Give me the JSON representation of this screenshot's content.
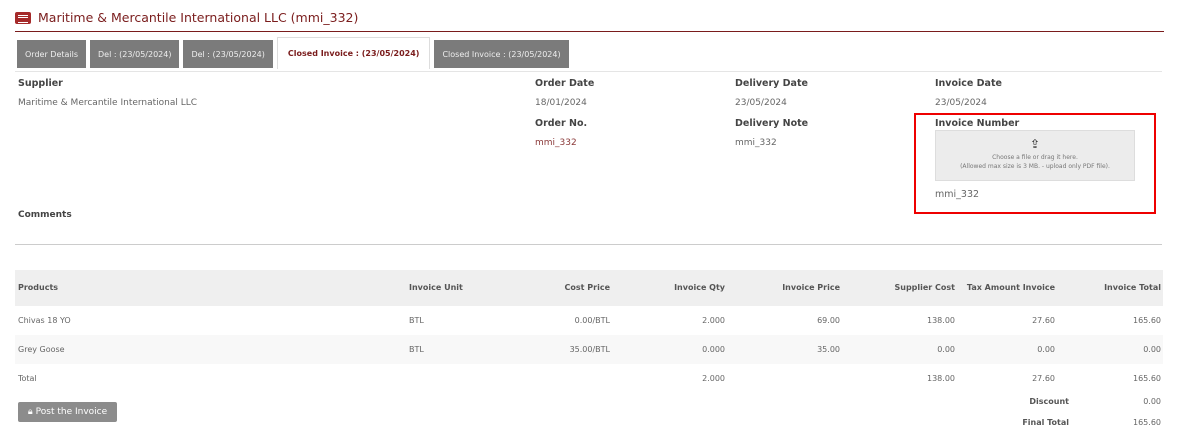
{
  "header": {
    "title": "Maritime & Mercantile International LLC (mmi_332)",
    "icon": "list-icon"
  },
  "tabs": [
    {
      "label": "Order Details"
    },
    {
      "label": "Del : (23/05/2024)"
    },
    {
      "label": "Del : (23/05/2024)"
    },
    {
      "label": "Closed Invoice : (23/05/2024)",
      "active": true
    },
    {
      "label": "Closed Invoice : (23/05/2024)"
    }
  ],
  "details": {
    "supplier_label": "Supplier",
    "supplier": "Maritime & Mercantile International LLC",
    "order_date_label": "Order Date",
    "order_date": "18/01/2024",
    "delivery_date_label": "Delivery Date",
    "delivery_date": "23/05/2024",
    "invoice_date_label": "Invoice Date",
    "invoice_date": "23/05/2024",
    "order_no_label": "Order No.",
    "order_no": "mmi_332",
    "delivery_note_label": "Delivery Note",
    "delivery_note": "mmi_332",
    "invoice_number_label": "Invoice Number",
    "invoice_number": "mmi_332",
    "upload_line1": "Choose a file or drag it here.",
    "upload_line2": "(Allowed max size is 3 MB. - upload only PDF file).",
    "comments_label": "Comments"
  },
  "table": {
    "headers": [
      "Products",
      "Invoice Unit",
      "Cost Price",
      "Invoice Qty",
      "Invoice Price",
      "Supplier Cost",
      "Tax Amount Invoice",
      "Invoice Total"
    ],
    "rows": [
      [
        "Chivas 18 YO",
        "BTL",
        "0.00/BTL",
        "2.000",
        "69.00",
        "138.00",
        "27.60",
        "165.60"
      ],
      [
        "Grey Goose",
        "BTL",
        "35.00/BTL",
        "0.000",
        "35.00",
        "0.00",
        "0.00",
        "0.00"
      ],
      [
        "Total",
        "",
        "",
        "2.000",
        "",
        "138.00",
        "27.60",
        "165.60"
      ]
    ]
  },
  "summary": {
    "discount_label": "Discount",
    "discount": "0.00",
    "final_total_label": "Final Total",
    "final_total": "165.60"
  },
  "actions": {
    "post_label": "Post the Invoice",
    "post_icon": "lock-icon"
  },
  "colors": {
    "brand": "#7a1c1c",
    "highlight": "#e00000"
  }
}
